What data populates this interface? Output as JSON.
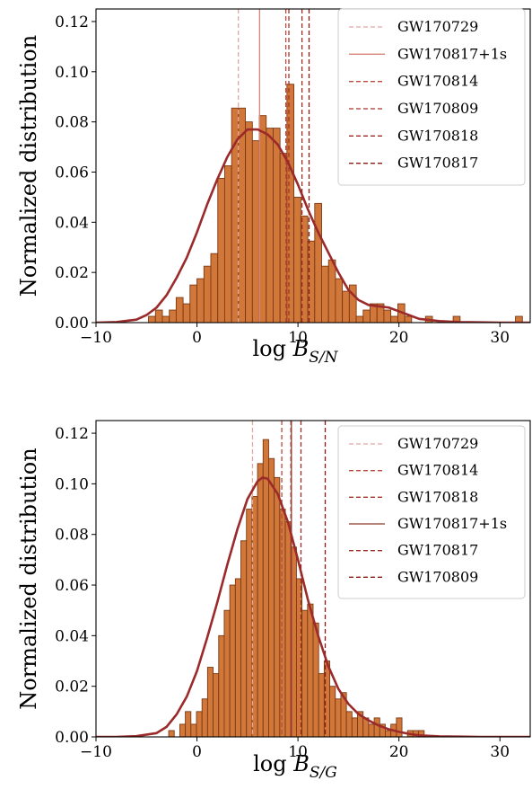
{
  "chart_data": [
    {
      "type": "histogram",
      "panel": "top",
      "title": "",
      "xlabel": "log B",
      "xlabel_sub": "S/N",
      "ylabel": "Normalized distribution",
      "xlim": [
        -10,
        33
      ],
      "ylim": [
        0,
        0.125
      ],
      "xticks": [
        "−10",
        "0",
        "10",
        "20",
        "30"
      ],
      "xtick_values": [
        -10,
        0,
        10,
        20,
        30
      ],
      "yticks": [
        "0.00",
        "0.02",
        "0.04",
        "0.06",
        "0.08",
        "0.10",
        "0.12"
      ],
      "ytick_values": [
        0,
        0.02,
        0.04,
        0.06,
        0.08,
        0.1,
        0.12
      ],
      "grid": false,
      "legend_position": "top-right",
      "hist_color": "#d2773a",
      "hist_edge": "#7a3a14",
      "kde_color": "#9b2a2a",
      "bin_width": 0.686,
      "bins": [
        [
          -4.8,
          0.0025
        ],
        [
          -4.11,
          0.005
        ],
        [
          -3.43,
          0.0025
        ],
        [
          -2.74,
          0.005
        ],
        [
          -2.06,
          0.01
        ],
        [
          -1.37,
          0.0075
        ],
        [
          -0.69,
          0.015
        ],
        [
          0.0,
          0.0175
        ],
        [
          0.69,
          0.0225
        ],
        [
          1.37,
          0.0275
        ],
        [
          2.06,
          0.0575
        ],
        [
          2.74,
          0.0625
        ],
        [
          3.43,
          0.0855
        ],
        [
          4.11,
          0.0855
        ],
        [
          4.8,
          0.08
        ],
        [
          5.49,
          0.0725
        ],
        [
          6.17,
          0.0825
        ],
        [
          6.86,
          0.0775
        ],
        [
          7.54,
          0.0775
        ],
        [
          8.23,
          0.0675
        ],
        [
          8.91,
          0.095
        ],
        [
          9.6,
          0.05
        ],
        [
          10.29,
          0.0425
        ],
        [
          10.97,
          0.0325
        ],
        [
          11.66,
          0.0475
        ],
        [
          12.34,
          0.0225
        ],
        [
          13.03,
          0.025
        ],
        [
          13.71,
          0.0175
        ],
        [
          14.4,
          0.0125
        ],
        [
          15.09,
          0.015
        ],
        [
          15.77,
          0.0025
        ],
        [
          16.46,
          0.005
        ],
        [
          17.14,
          0.0075
        ],
        [
          17.83,
          0.0075
        ],
        [
          18.51,
          0.005
        ],
        [
          19.2,
          0.0025
        ],
        [
          19.89,
          0.0075
        ],
        [
          20.57,
          0.0025
        ],
        [
          22.63,
          0.0025
        ],
        [
          25.37,
          0.0025
        ],
        [
          31.54,
          0.0025
        ]
      ],
      "kde": {
        "x": [
          -10,
          -8,
          -6,
          -5,
          -4,
          -3,
          -2,
          -1,
          0,
          1,
          2,
          3,
          4,
          5,
          6,
          7,
          8,
          9,
          10,
          11,
          12,
          13,
          14,
          15,
          16,
          17,
          18,
          19,
          20,
          21,
          22,
          24,
          26,
          28,
          30,
          33
        ],
        "y": [
          0,
          0.0002,
          0.0012,
          0.003,
          0.006,
          0.011,
          0.018,
          0.026,
          0.036,
          0.047,
          0.057,
          0.066,
          0.073,
          0.077,
          0.077,
          0.075,
          0.071,
          0.064,
          0.055,
          0.045,
          0.036,
          0.028,
          0.02,
          0.013,
          0.009,
          0.007,
          0.0065,
          0.006,
          0.0045,
          0.003,
          0.0015,
          0.0006,
          0.0002,
          0.0001,
          0,
          0
        ]
      },
      "events": [
        {
          "name": "GW170729",
          "x": 4.1,
          "color": "#e3a8a0",
          "style": "dashed"
        },
        {
          "name": "GW170817+1s",
          "x": 6.2,
          "color": "#d8837a",
          "style": "solid"
        },
        {
          "name": "GW170814",
          "x": 8.8,
          "color": "#b94a3c",
          "style": "dashed"
        },
        {
          "name": "GW170809",
          "x": 9.1,
          "color": "#a8352a",
          "style": "dashed"
        },
        {
          "name": "GW170818",
          "x": 10.4,
          "color": "#9a2a22",
          "style": "dashed"
        },
        {
          "name": "GW170817",
          "x": 11.1,
          "color": "#8a1a14",
          "style": "dashed"
        }
      ]
    },
    {
      "type": "histogram",
      "panel": "bottom",
      "title": "",
      "xlabel": "log B",
      "xlabel_sub": "S/G",
      "ylabel": "Normalized distribution",
      "xlim": [
        -10,
        33
      ],
      "ylim": [
        0,
        0.125
      ],
      "xticks": [
        "−10",
        "0",
        "10",
        "20",
        "30"
      ],
      "xtick_values": [
        -10,
        0,
        10,
        20,
        30
      ],
      "yticks": [
        "0.00",
        "0.02",
        "0.04",
        "0.06",
        "0.08",
        "0.10",
        "0.12"
      ],
      "ytick_values": [
        0,
        0.02,
        0.04,
        0.06,
        0.08,
        0.1,
        0.12
      ],
      "grid": false,
      "legend_position": "top-right",
      "hist_color": "#d2773a",
      "hist_edge": "#7a3a14",
      "kde_color": "#9b2a2a",
      "bin_width": 0.55,
      "bins": [
        [
          -2.8,
          0.0025
        ],
        [
          -1.7,
          0.005
        ],
        [
          -1.15,
          0.01
        ],
        [
          -0.6,
          0.005
        ],
        [
          -0.05,
          0.01
        ],
        [
          0.5,
          0.015
        ],
        [
          1.05,
          0.0275
        ],
        [
          1.6,
          0.025
        ],
        [
          2.15,
          0.04
        ],
        [
          2.7,
          0.05
        ],
        [
          3.25,
          0.06
        ],
        [
          3.8,
          0.0625
        ],
        [
          4.35,
          0.0775
        ],
        [
          4.9,
          0.09
        ],
        [
          5.45,
          0.095
        ],
        [
          6.0,
          0.108
        ],
        [
          6.55,
          0.1175
        ],
        [
          7.1,
          0.11
        ],
        [
          7.65,
          0.1025
        ],
        [
          8.2,
          0.09
        ],
        [
          8.75,
          0.085
        ],
        [
          9.3,
          0.075
        ],
        [
          9.85,
          0.0625
        ],
        [
          10.4,
          0.05
        ],
        [
          10.95,
          0.0525
        ],
        [
          11.5,
          0.045
        ],
        [
          12.05,
          0.025
        ],
        [
          12.6,
          0.03
        ],
        [
          13.15,
          0.02
        ],
        [
          13.7,
          0.015
        ],
        [
          14.25,
          0.0175
        ],
        [
          14.8,
          0.01
        ],
        [
          15.35,
          0.0075
        ],
        [
          15.9,
          0.01
        ],
        [
          16.45,
          0.0075
        ],
        [
          17.0,
          0.005
        ],
        [
          17.55,
          0.0075
        ],
        [
          18.1,
          0.005
        ],
        [
          18.65,
          0.0025
        ],
        [
          19.2,
          0.005
        ],
        [
          19.75,
          0.0075
        ],
        [
          20.85,
          0.0025
        ],
        [
          21.4,
          0.0025
        ],
        [
          21.95,
          0.0025
        ]
      ],
      "kde": {
        "x": [
          -10,
          -8,
          -6,
          -4,
          -3,
          -2,
          -1,
          0,
          1,
          2,
          3,
          4,
          5,
          6,
          6.5,
          7,
          8,
          9,
          10,
          11,
          12,
          13,
          14,
          15,
          16,
          17,
          18,
          19,
          20,
          21,
          22,
          24,
          26,
          28,
          33
        ],
        "y": [
          0,
          0,
          0.0003,
          0.0015,
          0.004,
          0.009,
          0.016,
          0.026,
          0.039,
          0.053,
          0.068,
          0.082,
          0.094,
          0.101,
          0.1025,
          0.102,
          0.096,
          0.085,
          0.07,
          0.054,
          0.04,
          0.028,
          0.019,
          0.013,
          0.009,
          0.0065,
          0.0045,
          0.003,
          0.002,
          0.0012,
          0.0006,
          0.0002,
          0.0001,
          0,
          0
        ]
      },
      "events": [
        {
          "name": "GW170729",
          "x": 5.5,
          "color": "#e3a8a0",
          "style": "dashed"
        },
        {
          "name": "GW170814",
          "x": 8.4,
          "color": "#b94a3c",
          "style": "dashed"
        },
        {
          "name": "GW170818",
          "x": 9.3,
          "color": "#a8352a",
          "style": "dashed"
        },
        {
          "name": "GW170817+1s",
          "x": 9.35,
          "color": "#8e3a2e",
          "style": "solid"
        },
        {
          "name": "GW170817",
          "x": 10.3,
          "color": "#9a2a22",
          "style": "dashed"
        },
        {
          "name": "GW170809",
          "x": 12.7,
          "color": "#8a1a14",
          "style": "dashed"
        }
      ]
    }
  ]
}
